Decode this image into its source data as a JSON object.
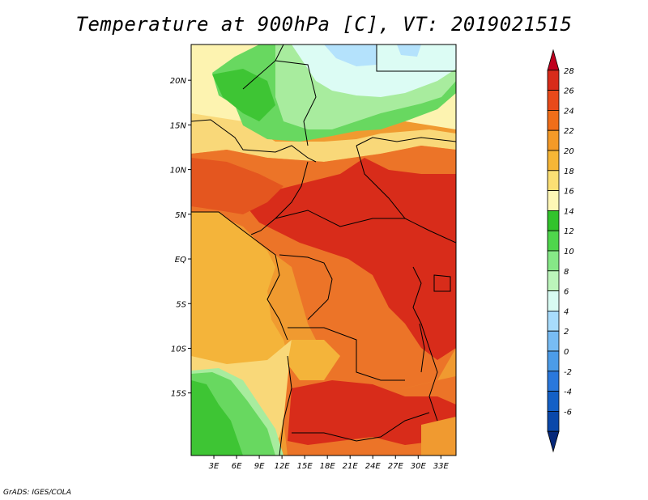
{
  "title": "Temperature at 900hPa [C], VT: 2019021515",
  "credit": "GrADS: IGES/COLA",
  "map": {
    "lon_ticks": [
      "3E",
      "6E",
      "9E",
      "12E",
      "15E",
      "18E",
      "21E",
      "24E",
      "27E",
      "30E",
      "33E"
    ],
    "lat_ticks": [
      "20N",
      "15N",
      "10N",
      "5N",
      "EQ",
      "5S",
      "10S",
      "15S"
    ],
    "lon_range": [
      0,
      35
    ],
    "lat_range": [
      -22,
      24
    ]
  },
  "colorbar": {
    "labels": [
      "28",
      "26",
      "24",
      "22",
      "20",
      "18",
      "16",
      "14",
      "12",
      "10",
      "8",
      "6",
      "4",
      "2",
      "0",
      "-2",
      "-4",
      "-6"
    ],
    "colors": [
      "#c0001e",
      "#d82c1a",
      "#e84a1a",
      "#f06e1a",
      "#f49a28",
      "#f6b636",
      "#fbdf74",
      "#fef7b6",
      "#32c32c",
      "#4fd64c",
      "#86e887",
      "#bcf5bb",
      "#d8fbf2",
      "#a8dcfc",
      "#78bcf4",
      "#4c9ce8",
      "#2a78dc",
      "#1460c6",
      "#0a48aa",
      "#06287a"
    ],
    "colors_note": "",
    "range": [
      -6,
      28
    ]
  },
  "palette": {
    "green_dark": "#3ec534",
    "green": "#68d860",
    "green_light": "#a8ec9e",
    "cyan_light": "#dcfcf4",
    "blue_light": "#b4e2fc",
    "yellow_pale": "#fdf3b0",
    "yellow": "#f9d879",
    "orange_light": "#f4b43a",
    "orange": "#f09a30",
    "orange_dark": "#ec7428",
    "red_orange": "#e4561f",
    "red": "#d82c1a",
    "border": "#000000"
  }
}
